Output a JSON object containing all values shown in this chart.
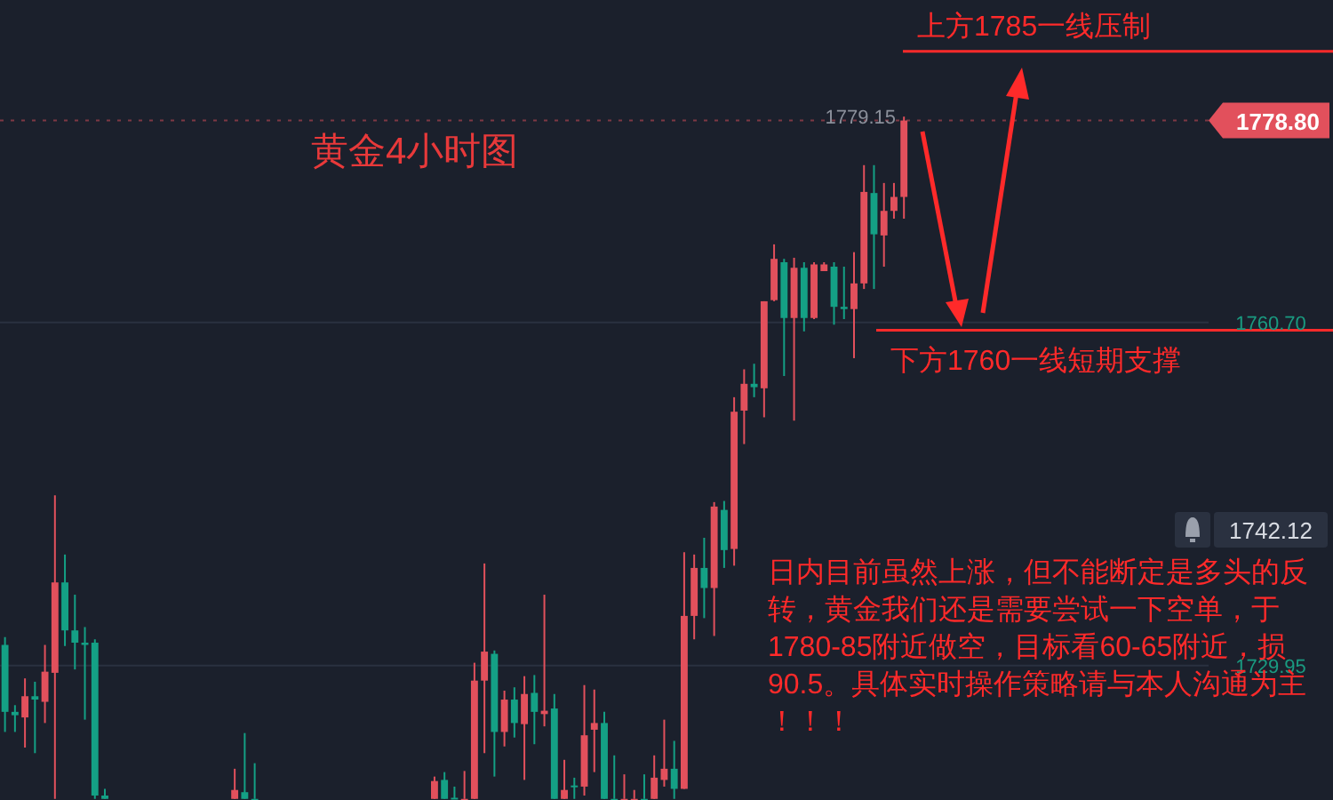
{
  "chart_data": {
    "type": "candlestick",
    "title": "黄金4小时图",
    "categories": [
      null,
      null,
      null,
      null,
      null,
      null,
      null,
      null,
      null,
      null,
      null,
      null,
      null,
      null,
      null,
      null,
      null,
      null,
      null,
      null,
      null,
      null,
      null,
      null,
      null,
      null,
      null,
      null,
      null,
      null,
      null,
      null,
      null,
      null,
      null,
      null,
      null,
      null,
      null,
      null,
      null,
      null,
      null,
      null,
      null,
      null,
      null,
      null,
      null,
      null,
      null,
      null,
      null,
      null,
      null,
      null,
      null,
      null,
      null,
      null,
      null,
      null,
      null,
      null,
      null,
      null,
      null,
      null,
      null,
      null,
      null,
      null,
      null,
      null,
      null,
      null,
      null,
      null,
      null,
      null,
      null,
      null,
      null,
      null,
      null,
      null,
      null,
      null,
      null,
      null,
      null,
      null,
      null,
      null,
      null,
      null,
      null,
      null,
      null,
      null,
      null,
      null,
      null,
      null,
      null,
      null,
      null,
      null,
      null,
      null,
      null,
      null,
      null,
      null,
      null,
      null,
      null,
      null,
      null,
      null,
      null
    ],
    "ohlc": [
      [
        1731.8,
        1732.5,
        1724.0,
        1725.8
      ],
      [
        1725.8,
        1726.4,
        1724.0,
        1725.5
      ],
      [
        1725.3,
        1728.8,
        1722.6,
        1727.2
      ],
      [
        1727.2,
        1728.5,
        1722.1,
        1726.9
      ],
      [
        1726.7,
        1731.8,
        1724.8,
        1729.4
      ],
      [
        1729.3,
        1745.2,
        1718.0,
        1737.4
      ],
      [
        1737.4,
        1739.9,
        1731.7,
        1733.1
      ],
      [
        1733.1,
        1736.3,
        1729.6,
        1732.0
      ],
      [
        1732.0,
        1733.4,
        1725.1,
        1731.8
      ],
      [
        1732.0,
        1732.3,
        1718.0,
        1718.3
      ],
      [
        1718.3,
        1718.9,
        1718.0,
        1718.0
      ],
      null,
      null,
      null,
      null,
      null,
      null,
      null,
      null,
      null,
      null,
      null,
      null,
      [
        1718.0,
        1720.7,
        1718.0,
        1718.8
      ],
      [
        1718.6,
        1723.9,
        1718.0,
        1718.0
      ],
      [
        1718.0,
        1721.2,
        1718.0,
        1718.0
      ],
      null,
      null,
      null,
      null,
      null,
      null,
      null,
      null,
      null,
      null,
      null,
      null,
      null,
      null,
      null,
      null,
      null,
      [
        1718.0,
        1720.0,
        1718.0,
        1719.6
      ],
      [
        1719.7,
        1720.4,
        1718.0,
        1718.0
      ],
      [
        1718.1,
        1719.1,
        1718.0,
        1718.0
      ],
      [
        1718.0,
        1720.5,
        1718.0,
        1718.0
      ],
      [
        1718.0,
        1730.2,
        1718.0,
        1728.6
      ],
      [
        1728.6,
        1739.1,
        1722.1,
        1731.2
      ],
      [
        1731.0,
        1731.3,
        1720.0,
        1724.0
      ],
      [
        1724.0,
        1727.7,
        1722.7,
        1726.9
      ],
      [
        1726.9,
        1728.0,
        1723.5,
        1724.8
      ],
      [
        1724.7,
        1729.0,
        1719.7,
        1727.4
      ],
      [
        1727.5,
        1729.1,
        1722.9,
        1725.8
      ],
      [
        1725.6,
        1736.3,
        1724.5,
        1725.9
      ],
      [
        1726.1,
        1727.4,
        1718.0,
        1718.0
      ],
      [
        1718.0,
        1721.5,
        1718.0,
        1718.8
      ],
      [
        1719.2,
        1719.9,
        1718.0,
        1719.1
      ],
      [
        1719.1,
        1728.2,
        1718.3,
        1723.7
      ],
      [
        1724.2,
        1727.8,
        1720.4,
        1724.8
      ],
      [
        1724.8,
        1725.8,
        1718.0,
        1718.0
      ],
      [
        1718.0,
        1721.9,
        1718.0,
        1718.0
      ],
      [
        1718.0,
        1720.2,
        1718.0,
        1718.0
      ],
      [
        1718.0,
        1718.8,
        1718.0,
        1718.0
      ],
      [
        1718.0,
        1720.2,
        1718.0,
        1718.0
      ],
      [
        1718.0,
        1721.9,
        1718.0,
        1719.9
      ],
      [
        1719.7,
        1725.1,
        1719.1,
        1720.7
      ],
      [
        1720.7,
        1723.2,
        1718.0,
        1718.9
      ],
      [
        1718.9,
        1740.1,
        1718.9,
        1734.4
      ],
      [
        1734.4,
        1739.9,
        1732.3,
        1738.7
      ],
      [
        1738.7,
        1741.4,
        1734.2,
        1736.9
      ],
      [
        1736.9,
        1744.6,
        1732.6,
        1744.2
      ],
      [
        1743.9,
        1744.7,
        1738.7,
        1740.3
      ],
      [
        1740.4,
        1754.0,
        1738.9,
        1752.7
      ],
      [
        1752.8,
        1756.5,
        1749.8,
        1755.2
      ],
      [
        1755.2,
        1757.0,
        1754.0,
        1754.9
      ],
      [
        1754.8,
        1762.6,
        1752.2,
        1762.6
      ],
      [
        1762.7,
        1767.7,
        1762.6,
        1766.4
      ],
      [
        1766.1,
        1766.4,
        1755.9,
        1761.1
      ],
      [
        1761.1,
        1766.5,
        1751.9,
        1765.6
      ],
      [
        1765.6,
        1766.1,
        1759.9,
        1761.1
      ],
      [
        1761.1,
        1766.1,
        1761.0,
        1765.9
      ],
      [
        1765.3,
        1766.1,
        1765.3,
        1765.9
      ],
      [
        1765.7,
        1766.1,
        1760.5,
        1762.1
      ],
      [
        1762.1,
        1765.7,
        1761.0,
        1761.9
      ],
      [
        1761.9,
        1767.0,
        1757.5,
        1764.2
      ],
      [
        1764.2,
        1774.8,
        1763.7,
        1772.4
      ],
      [
        1772.3,
        1774.8,
        1763.7,
        1768.6
      ],
      [
        1768.5,
        1773.2,
        1765.7,
        1770.7
      ],
      [
        1770.7,
        1773.2,
        1770.0,
        1771.95
      ],
      [
        1771.95,
        1779.15,
        1770.0,
        1778.8
      ],
      null,
      null,
      null,
      null,
      null,
      null,
      null,
      null,
      null,
      null,
      null,
      null,
      null,
      null,
      null,
      null,
      null,
      null,
      null,
      null,
      null,
      null,
      null,
      null,
      null,
      null,
      null,
      null,
      null,
      null
    ],
    "colors": [
      "#14a085",
      "#14a085",
      "#e2505c",
      "#14a085",
      "#e2505c",
      "#e2505c",
      "#14a085",
      "#14a085",
      "#14a085",
      "#14a085",
      "#14a085",
      null,
      null,
      null,
      null,
      null,
      null,
      null,
      null,
      null,
      null,
      null,
      null,
      "#e2505c",
      "#14a085",
      "#14a085",
      null,
      null,
      null,
      null,
      null,
      null,
      null,
      null,
      null,
      null,
      null,
      null,
      null,
      null,
      null,
      null,
      null,
      "#e2505c",
      "#14a085",
      "#14a085",
      "#e2505c",
      "#e2505c",
      "#e2505c",
      "#14a085",
      "#e2505c",
      "#14a085",
      "#e2505c",
      "#14a085",
      "#e2505c",
      "#14a085",
      "#e2505c",
      "#14a085",
      "#e2505c",
      "#e2505c",
      "#14a085",
      "#14a085",
      "#e2505c",
      "#e2505c",
      "#14a085",
      "#e2505c",
      "#e2505c",
      "#14a085",
      "#e2505c",
      "#e2505c",
      "#14a085",
      "#e2505c",
      "#14a085",
      "#e2505c",
      "#e2505c",
      "#14a085",
      "#e2505c",
      "#e2505c",
      "#14a085",
      "#e2505c",
      "#14a085",
      "#e2505c",
      "#e2505c",
      "#14a085",
      "#14a085",
      "#e2505c",
      "#e2505c",
      "#14a085",
      "#e2505c",
      "#e2505c",
      "#e2505c",
      null,
      null,
      null,
      null,
      null,
      null,
      null,
      null,
      null,
      null,
      null,
      null,
      null,
      null,
      null,
      null,
      null,
      null,
      null,
      null,
      null,
      null,
      null,
      null,
      null,
      null,
      null,
      null,
      null,
      null
    ],
    "ylim": [
      1717.9,
      1789.6
    ],
    "yticks": [
      {
        "value": 1760.7,
        "label": "1760.70"
      },
      {
        "value": 1729.95,
        "label": "1729.95"
      }
    ],
    "grid": "y",
    "ref_lines": [
      {
        "axis": "y",
        "value": 1785,
        "label": "上方1785一线压制",
        "color": "#ff2a2a",
        "line_style": "solid"
      },
      {
        "axis": "y",
        "value": 1760,
        "label": "下方1760一线短期支撑",
        "color": "#ff2a2a",
        "line_style": "solid"
      },
      {
        "axis": "y",
        "value": 1778.8,
        "label": "1778.80",
        "color": "#e2505c",
        "line_style": "dotted"
      }
    ],
    "annotations": [
      {
        "text": "1779.15",
        "y": 1779.15
      },
      "1742.12",
      "日内目前虽然上涨，但不能断定是多头的反转，黄金我们还是需要尝试一下空单，于1780-85附近做空，目标看60-65附近，损90.5。具体实时操作策略请与本人沟通为主！！！"
    ]
  }
}
